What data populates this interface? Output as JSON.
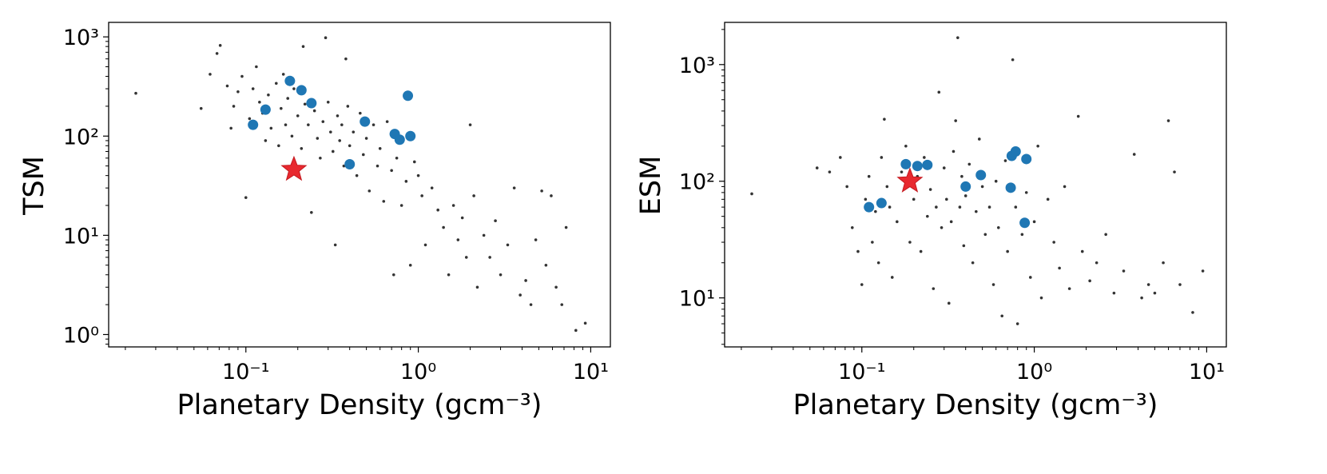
{
  "colors": {
    "background": "#ffffff",
    "frame": "#000000",
    "scatter": "#333333",
    "highlight": "#1f77b4",
    "star": "#e8292f",
    "star_edge": "#c41a20"
  },
  "chart_data": [
    {
      "type": "scatter",
      "xscale": "log",
      "yscale": "log",
      "xlabel": "Planetary Density (gcm⁻³)",
      "ylabel": "TSM",
      "xlim": [
        0.016,
        13
      ],
      "ylim": [
        0.75,
        1400
      ],
      "xticks": [
        {
          "value": 0.1,
          "label": "10⁻¹"
        },
        {
          "value": 1,
          "label": "10⁰"
        },
        {
          "value": 10,
          "label": "10¹"
        }
      ],
      "yticks": [
        {
          "value": 1,
          "label": "10⁰"
        },
        {
          "value": 10,
          "label": "10¹"
        },
        {
          "value": 100,
          "label": "10²"
        },
        {
          "value": 1000,
          "label": "10³"
        }
      ],
      "series": [
        {
          "marker": "dot",
          "points": [
            [
              0.023,
              270
            ],
            [
              0.055,
              190
            ],
            [
              0.062,
              420
            ],
            [
              0.068,
              680
            ],
            [
              0.071,
              820
            ],
            [
              0.078,
              320
            ],
            [
              0.082,
              120
            ],
            [
              0.085,
              200
            ],
            [
              0.09,
              280
            ],
            [
              0.095,
              400
            ],
            [
              0.1,
              24
            ],
            [
              0.105,
              150
            ],
            [
              0.11,
              300
            ],
            [
              0.115,
              500
            ],
            [
              0.12,
              220
            ],
            [
              0.125,
              170
            ],
            [
              0.13,
              90
            ],
            [
              0.135,
              260
            ],
            [
              0.14,
              120
            ],
            [
              0.15,
              340
            ],
            [
              0.155,
              80
            ],
            [
              0.16,
              190
            ],
            [
              0.165,
              420
            ],
            [
              0.17,
              130
            ],
            [
              0.175,
              240
            ],
            [
              0.185,
              100
            ],
            [
              0.19,
              300
            ],
            [
              0.2,
              160
            ],
            [
              0.21,
              75
            ],
            [
              0.215,
              800
            ],
            [
              0.22,
              210
            ],
            [
              0.23,
              130
            ],
            [
              0.24,
              17
            ],
            [
              0.25,
              180
            ],
            [
              0.26,
              95
            ],
            [
              0.27,
              60
            ],
            [
              0.28,
              140
            ],
            [
              0.29,
              980
            ],
            [
              0.3,
              220
            ],
            [
              0.31,
              110
            ],
            [
              0.32,
              70
            ],
            [
              0.33,
              8
            ],
            [
              0.34,
              160
            ],
            [
              0.35,
              90
            ],
            [
              0.36,
              130
            ],
            [
              0.37,
              50
            ],
            [
              0.38,
              600
            ],
            [
              0.39,
              200
            ],
            [
              0.4,
              80
            ],
            [
              0.42,
              110
            ],
            [
              0.44,
              40
            ],
            [
              0.46,
              170
            ],
            [
              0.48,
              65
            ],
            [
              0.5,
              95
            ],
            [
              0.52,
              28
            ],
            [
              0.55,
              130
            ],
            [
              0.58,
              50
            ],
            [
              0.6,
              75
            ],
            [
              0.63,
              22
            ],
            [
              0.66,
              140
            ],
            [
              0.7,
              45
            ],
            [
              0.72,
              4
            ],
            [
              0.75,
              60
            ],
            [
              0.8,
              20
            ],
            [
              0.85,
              35
            ],
            [
              0.9,
              5
            ],
            [
              0.95,
              55
            ],
            [
              1.0,
              40
            ],
            [
              1.05,
              25
            ],
            [
              1.1,
              8
            ],
            [
              1.2,
              30
            ],
            [
              1.3,
              18
            ],
            [
              1.4,
              12
            ],
            [
              1.5,
              4
            ],
            [
              1.6,
              20
            ],
            [
              1.7,
              9
            ],
            [
              1.8,
              15
            ],
            [
              1.9,
              6
            ],
            [
              2.0,
              130
            ],
            [
              2.1,
              25
            ],
            [
              2.2,
              3
            ],
            [
              2.4,
              10
            ],
            [
              2.6,
              6
            ],
            [
              2.8,
              14
            ],
            [
              3.0,
              4
            ],
            [
              3.3,
              8
            ],
            [
              3.6,
              30
            ],
            [
              3.9,
              2.5
            ],
            [
              4.2,
              3.5
            ],
            [
              4.5,
              2
            ],
            [
              4.8,
              9
            ],
            [
              5.2,
              28
            ],
            [
              5.5,
              5
            ],
            [
              5.9,
              25
            ],
            [
              6.3,
              3
            ],
            [
              6.8,
              2
            ],
            [
              7.2,
              12
            ],
            [
              8.2,
              1.1
            ],
            [
              9.3,
              1.3
            ]
          ]
        },
        {
          "marker": "circle",
          "points": [
            [
              0.11,
              130
            ],
            [
              0.13,
              185
            ],
            [
              0.18,
              360
            ],
            [
              0.21,
              290
            ],
            [
              0.24,
              215
            ],
            [
              0.4,
              52
            ],
            [
              0.49,
              140
            ],
            [
              0.73,
              105
            ],
            [
              0.78,
              92
            ],
            [
              0.87,
              255
            ],
            [
              0.9,
              100
            ]
          ]
        },
        {
          "marker": "star",
          "points": [
            [
              0.19,
              46
            ]
          ]
        }
      ]
    },
    {
      "type": "scatter",
      "xscale": "log",
      "yscale": "log",
      "xlabel": "Planetary Density (gcm⁻³)",
      "ylabel": "ESM",
      "xlim": [
        0.016,
        13
      ],
      "ylim": [
        3.8,
        2300
      ],
      "xticks": [
        {
          "value": 0.1,
          "label": "10⁻¹"
        },
        {
          "value": 1,
          "label": "10⁰"
        },
        {
          "value": 10,
          "label": "10¹"
        }
      ],
      "yticks": [
        {
          "value": 10,
          "label": "10¹"
        },
        {
          "value": 100,
          "label": "10²"
        },
        {
          "value": 1000,
          "label": "10³"
        }
      ],
      "series": [
        {
          "marker": "dot",
          "points": [
            [
              0.023,
              78
            ],
            [
              0.055,
              130
            ],
            [
              0.065,
              120
            ],
            [
              0.075,
              160
            ],
            [
              0.082,
              90
            ],
            [
              0.088,
              40
            ],
            [
              0.095,
              25
            ],
            [
              0.1,
              13
            ],
            [
              0.105,
              70
            ],
            [
              0.11,
              110
            ],
            [
              0.115,
              30
            ],
            [
              0.12,
              55
            ],
            [
              0.125,
              20
            ],
            [
              0.13,
              160
            ],
            [
              0.135,
              340
            ],
            [
              0.14,
              90
            ],
            [
              0.145,
              60
            ],
            [
              0.15,
              15
            ],
            [
              0.16,
              45
            ],
            [
              0.17,
              120
            ],
            [
              0.18,
              200
            ],
            [
              0.19,
              30
            ],
            [
              0.2,
              70
            ],
            [
              0.21,
              110
            ],
            [
              0.22,
              25
            ],
            [
              0.23,
              160
            ],
            [
              0.24,
              50
            ],
            [
              0.25,
              85
            ],
            [
              0.26,
              12
            ],
            [
              0.27,
              60
            ],
            [
              0.28,
              580
            ],
            [
              0.29,
              40
            ],
            [
              0.3,
              130
            ],
            [
              0.31,
              70
            ],
            [
              0.32,
              9
            ],
            [
              0.33,
              45
            ],
            [
              0.34,
              180
            ],
            [
              0.35,
              330
            ],
            [
              0.36,
              1700
            ],
            [
              0.37,
              60
            ],
            [
              0.38,
              110
            ],
            [
              0.39,
              28
            ],
            [
              0.4,
              75
            ],
            [
              0.42,
              140
            ],
            [
              0.44,
              20
            ],
            [
              0.46,
              55
            ],
            [
              0.48,
              230
            ],
            [
              0.5,
              90
            ],
            [
              0.52,
              35
            ],
            [
              0.55,
              60
            ],
            [
              0.58,
              13
            ],
            [
              0.6,
              100
            ],
            [
              0.62,
              40
            ],
            [
              0.65,
              7
            ],
            [
              0.68,
              150
            ],
            [
              0.7,
              25
            ],
            [
              0.75,
              1100
            ],
            [
              0.78,
              60
            ],
            [
              0.8,
              6
            ],
            [
              0.85,
              35
            ],
            [
              0.9,
              80
            ],
            [
              0.95,
              15
            ],
            [
              1.0,
              45
            ],
            [
              1.05,
              200
            ],
            [
              1.1,
              10
            ],
            [
              1.2,
              70
            ],
            [
              1.3,
              30
            ],
            [
              1.4,
              18
            ],
            [
              1.5,
              90
            ],
            [
              1.6,
              12
            ],
            [
              1.8,
              360
            ],
            [
              1.9,
              25
            ],
            [
              2.1,
              14
            ],
            [
              2.3,
              20
            ],
            [
              2.6,
              35
            ],
            [
              2.9,
              11
            ],
            [
              3.3,
              17
            ],
            [
              3.8,
              170
            ],
            [
              4.2,
              10
            ],
            [
              4.6,
              13
            ],
            [
              5.0,
              11
            ],
            [
              5.6,
              20
            ],
            [
              6.0,
              330
            ],
            [
              6.5,
              120
            ],
            [
              7.0,
              13
            ],
            [
              8.3,
              7.5
            ],
            [
              9.5,
              17
            ]
          ]
        },
        {
          "marker": "circle",
          "points": [
            [
              0.11,
              60
            ],
            [
              0.13,
              65
            ],
            [
              0.18,
              140
            ],
            [
              0.21,
              135
            ],
            [
              0.24,
              138
            ],
            [
              0.4,
              90
            ],
            [
              0.49,
              113
            ],
            [
              0.73,
              88
            ],
            [
              0.74,
              165
            ],
            [
              0.78,
              180
            ],
            [
              0.88,
              44
            ],
            [
              0.9,
              155
            ]
          ]
        },
        {
          "marker": "star",
          "points": [
            [
              0.19,
              100
            ]
          ]
        }
      ]
    }
  ]
}
